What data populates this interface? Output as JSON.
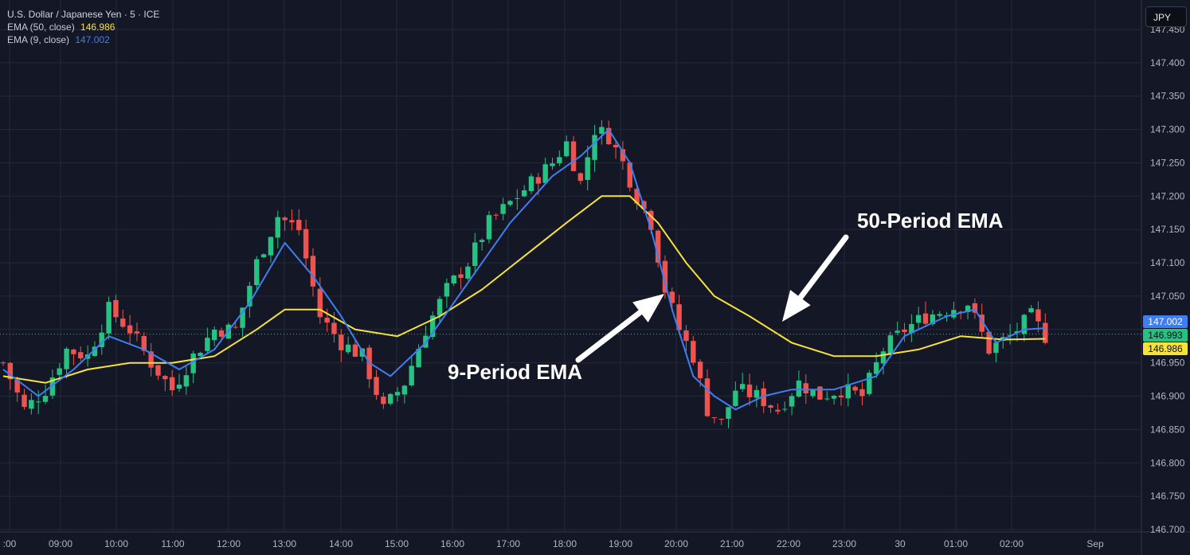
{
  "legend": {
    "symbol": "U.S. Dollar / Japanese Yen · 5 · ICE",
    "ema50_label": "EMA (50, close)",
    "ema50_value": "146.986",
    "ema9_label": "EMA (9, close)",
    "ema9_value": "147.002"
  },
  "currency_button": "JPY",
  "annotations": {
    "ema50": "50-Period EMA",
    "ema9": "9-Period EMA"
  },
  "colors": {
    "background": "#141826",
    "up": "#26c281",
    "down": "#ef5350",
    "ema50": "#f7e23a",
    "ema9": "#3f7ef0",
    "last_price": "#26c281"
  },
  "chart_data": {
    "type": "candlestick",
    "ylim": [
      146.7,
      147.45
    ],
    "y_ticks": [
      "146.700",
      "146.750",
      "146.800",
      "146.850",
      "146.900",
      "146.950",
      "147.050",
      "147.100",
      "147.150",
      "147.200",
      "147.250",
      "147.300",
      "147.350",
      "147.400",
      "147.450"
    ],
    "x_ticks": [
      ":00",
      "09:00",
      "10:00",
      "11:00",
      "12:00",
      "13:00",
      "14:00",
      "15:00",
      "16:00",
      "17:00",
      "18:00",
      "19:00",
      "20:00",
      "21:00",
      "22:00",
      "23:00",
      "30",
      "01:00",
      "02:00",
      "Sep"
    ],
    "price_labels": [
      {
        "value": "147.002",
        "color": "#3f7ef0"
      },
      {
        "value": "146.993",
        "color": "#26c281"
      },
      {
        "value": "146.986",
        "color": "#f7e23a"
      }
    ],
    "last_price": 146.993,
    "close_path": [
      [
        0,
        146.95
      ],
      [
        3,
        146.88
      ],
      [
        6,
        146.91
      ],
      [
        9,
        146.97
      ],
      [
        12,
        146.96
      ],
      [
        15,
        147.03
      ],
      [
        18,
        147.0
      ],
      [
        21,
        146.95
      ],
      [
        24,
        146.91
      ],
      [
        27,
        146.96
      ],
      [
        30,
        147.0
      ],
      [
        33,
        147.0
      ],
      [
        36,
        147.1
      ],
      [
        39,
        147.17
      ],
      [
        42,
        147.15
      ],
      [
        45,
        147.02
      ],
      [
        48,
        146.98
      ],
      [
        51,
        146.96
      ],
      [
        54,
        146.88
      ],
      [
        57,
        146.92
      ],
      [
        60,
        147.0
      ],
      [
        63,
        147.06
      ],
      [
        66,
        147.1
      ],
      [
        69,
        147.16
      ],
      [
        72,
        147.19
      ],
      [
        75,
        147.22
      ],
      [
        78,
        147.25
      ],
      [
        80,
        147.28
      ],
      [
        82,
        147.22
      ],
      [
        84,
        147.3
      ],
      [
        86,
        147.29
      ],
      [
        88,
        147.25
      ],
      [
        90,
        147.2
      ],
      [
        92,
        147.16
      ],
      [
        94,
        147.06
      ],
      [
        96,
        147.0
      ],
      [
        98,
        146.96
      ],
      [
        100,
        146.88
      ],
      [
        102,
        146.86
      ],
      [
        104,
        146.91
      ],
      [
        107,
        146.9
      ],
      [
        110,
        146.88
      ],
      [
        113,
        146.92
      ],
      [
        116,
        146.9
      ],
      [
        119,
        146.91
      ],
      [
        122,
        146.9
      ],
      [
        125,
        146.97
      ],
      [
        128,
        147.0
      ],
      [
        131,
        147.02
      ],
      [
        134,
        147.03
      ],
      [
        137,
        147.04
      ],
      [
        140,
        146.97
      ],
      [
        143,
        146.99
      ],
      [
        146,
        147.02
      ],
      [
        148,
        146.99
      ]
    ],
    "ema50": [
      [
        0,
        146.93
      ],
      [
        6,
        146.92
      ],
      [
        12,
        146.94
      ],
      [
        18,
        146.95
      ],
      [
        24,
        146.95
      ],
      [
        30,
        146.96
      ],
      [
        36,
        147.0
      ],
      [
        40,
        147.03
      ],
      [
        45,
        147.03
      ],
      [
        50,
        147.0
      ],
      [
        56,
        146.99
      ],
      [
        62,
        147.02
      ],
      [
        68,
        147.06
      ],
      [
        74,
        147.11
      ],
      [
        80,
        147.16
      ],
      [
        85,
        147.2
      ],
      [
        89,
        147.2
      ],
      [
        93,
        147.16
      ],
      [
        97,
        147.1
      ],
      [
        101,
        147.05
      ],
      [
        106,
        147.02
      ],
      [
        112,
        146.98
      ],
      [
        118,
        146.96
      ],
      [
        124,
        146.96
      ],
      [
        130,
        146.97
      ],
      [
        136,
        146.99
      ],
      [
        142,
        146.985
      ],
      [
        148,
        146.986
      ]
    ],
    "ema9": [
      [
        0,
        146.94
      ],
      [
        5,
        146.9
      ],
      [
        10,
        146.94
      ],
      [
        15,
        146.99
      ],
      [
        20,
        146.97
      ],
      [
        25,
        146.94
      ],
      [
        30,
        146.97
      ],
      [
        35,
        147.04
      ],
      [
        40,
        147.13
      ],
      [
        44,
        147.08
      ],
      [
        48,
        147.02
      ],
      [
        52,
        146.95
      ],
      [
        55,
        146.93
      ],
      [
        60,
        146.98
      ],
      [
        66,
        147.07
      ],
      [
        72,
        147.16
      ],
      [
        78,
        147.23
      ],
      [
        82,
        147.26
      ],
      [
        86,
        147.3
      ],
      [
        89,
        147.25
      ],
      [
        92,
        147.15
      ],
      [
        95,
        147.03
      ],
      [
        98,
        146.93
      ],
      [
        101,
        146.9
      ],
      [
        104,
        146.88
      ],
      [
        108,
        146.9
      ],
      [
        112,
        146.91
      ],
      [
        118,
        146.91
      ],
      [
        124,
        146.93
      ],
      [
        128,
        146.99
      ],
      [
        134,
        147.02
      ],
      [
        138,
        147.03
      ],
      [
        141,
        146.98
      ],
      [
        145,
        147.0
      ],
      [
        148,
        147.002
      ]
    ]
  }
}
